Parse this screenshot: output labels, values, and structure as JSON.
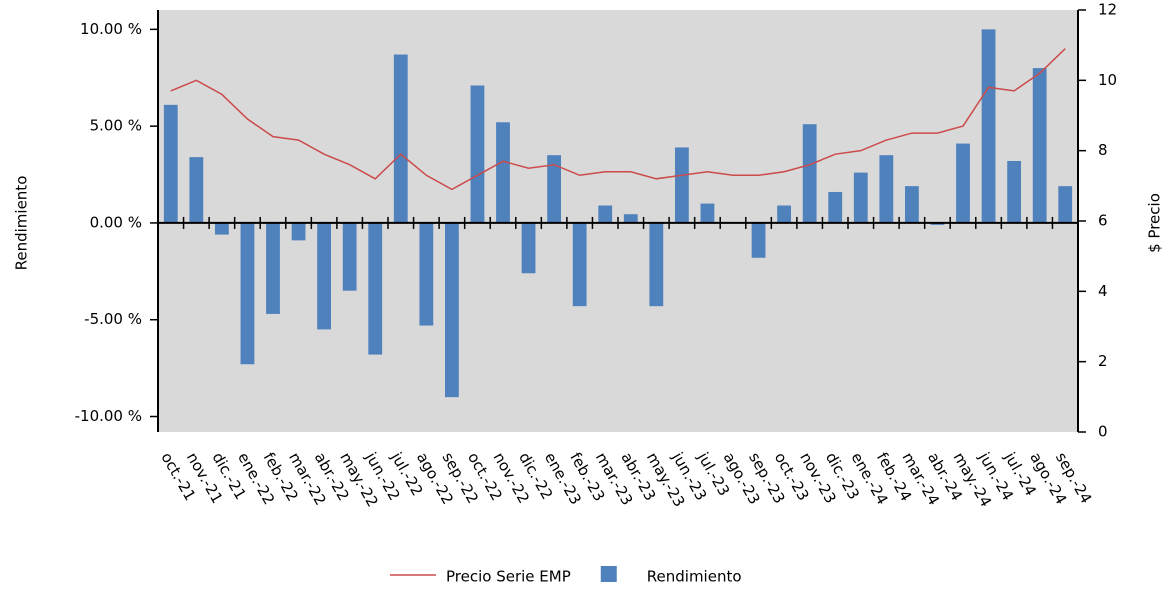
{
  "chart_data": {
    "type": "bar_line",
    "categories": [
      "oct.-21",
      "nov.-21",
      "dic.-21",
      "ene.-22",
      "feb.-22",
      "mar.-22",
      "abr.-22",
      "may.-22",
      "jun.-22",
      "jul.-22",
      "ago.-22",
      "sep.-22",
      "oct.-22",
      "nov.-22",
      "dic.-22",
      "ene.-23",
      "feb.-23",
      "mar.-23",
      "abr.-23",
      "may.-23",
      "jun.-23",
      "jul.-23",
      "ago.-23",
      "sep.-23",
      "oct.-23",
      "nov.-23",
      "dic.-23",
      "ene.-24",
      "feb.-24",
      "mar.-24",
      "abr.-24",
      "may.-24",
      "jun.-24",
      "jul.-24",
      "ago.-24",
      "sep.-24"
    ],
    "series": [
      {
        "name": "Precio Serie EMP",
        "type": "line",
        "axis": "y2",
        "color": "#cc4b4b",
        "values": [
          9.7,
          10.0,
          9.6,
          8.9,
          8.4,
          8.3,
          7.9,
          7.6,
          7.2,
          7.9,
          7.3,
          6.9,
          7.3,
          7.7,
          7.5,
          7.6,
          7.3,
          7.4,
          7.4,
          7.2,
          7.3,
          7.4,
          7.3,
          7.3,
          7.4,
          7.6,
          7.9,
          8.0,
          8.3,
          8.5,
          8.5,
          8.7,
          9.8,
          9.7,
          10.2,
          10.9
        ]
      },
      {
        "name": "Rendimiento",
        "type": "bar",
        "color": "#4f81bd",
        "values": [
          6.1,
          3.4,
          -0.6,
          -7.3,
          -4.7,
          -0.9,
          -5.5,
          -3.5,
          -6.8,
          8.7,
          -5.3,
          -9.0,
          7.1,
          5.2,
          -2.6,
          3.5,
          -4.3,
          0.9,
          0.45,
          -4.3,
          3.9,
          1.0,
          0.0,
          -1.8,
          0.9,
          5.1,
          1.6,
          2.6,
          3.5,
          1.9,
          -0.1,
          4.1,
          10.0,
          3.2,
          8.0,
          1.9
        ]
      }
    ],
    "y_label": "Rendimiento",
    "y2_label": "$ Precio",
    "ylim": [
      -10.8,
      11
    ],
    "yticks": [
      {
        "value": -10,
        "label": "-10.00 %"
      },
      {
        "value": -5,
        "label": "-5.00 %"
      },
      {
        "value": 0,
        "label": "0.00 %"
      },
      {
        "value": 5,
        "label": "5.00 %"
      },
      {
        "value": 10,
        "label": "10.00 %"
      }
    ],
    "y2lim": [
      0,
      12
    ],
    "y2ticks": [
      0,
      2,
      4,
      6,
      8,
      10,
      12
    ],
    "plot_background": "#d9d9d9"
  }
}
